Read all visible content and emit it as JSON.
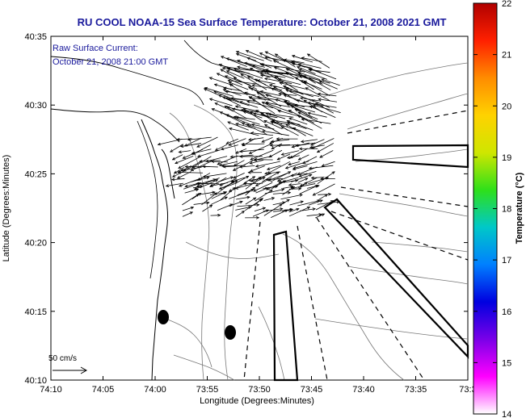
{
  "title": "RU COOL  NOAA-15  Sea Surface Temperature:  October 21, 2008 2021 GMT",
  "current_label_line1": "Raw Surface Current:",
  "current_label_line2": "October 21, 2008 21:00 GMT",
  "scale_label": "50 cm/s",
  "x_axis": {
    "label": "Longitude (Degrees:Minutes)",
    "ticks": [
      "74:10",
      "74:05",
      "74:00",
      "73:55",
      "73:50",
      "73:45",
      "73:40",
      "73:35",
      "73:3"
    ]
  },
  "y_axis": {
    "label": "Latitude (Degrees:Minutes)",
    "ticks": [
      "40:35",
      "40:30",
      "40:25",
      "40:20",
      "40:15",
      "40:10"
    ]
  },
  "colorbar": {
    "label": "Temperature (°C)",
    "ticks": [
      "22",
      "21",
      "20",
      "19",
      "18",
      "17",
      "16",
      "15",
      "14"
    ],
    "colors": [
      "#b00000",
      "#ff2000",
      "#ff8c00",
      "#ffd200",
      "#cfe600",
      "#2ee01a",
      "#00c8c8",
      "#0080ff",
      "#0000e0",
      "#7a00e8",
      "#ff00ff",
      "#ffffff"
    ]
  }
}
